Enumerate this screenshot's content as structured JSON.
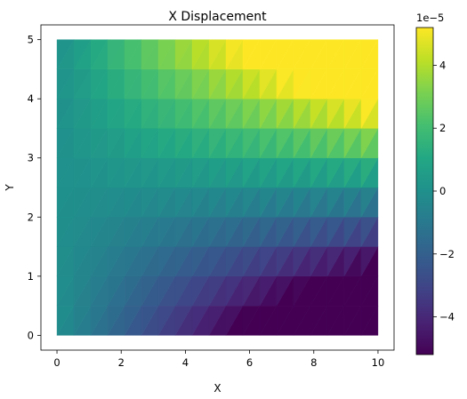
{
  "chart_data": {
    "type": "heatmap",
    "title": "X Displacement",
    "xlabel": "X",
    "ylabel": "Y",
    "xlim": [
      -0.5,
      10.5
    ],
    "ylim": [
      -0.25,
      5.25
    ],
    "field_extent": {
      "x": [
        0,
        10
      ],
      "y": [
        0,
        5
      ]
    },
    "mesh": {
      "nx": 19,
      "ny": 10,
      "cell_split": "triangles"
    },
    "field_model": "u_x(x,y) = 1e-5 * x * (y - 2.5) / 2.5",
    "xticks": [
      0,
      2,
      4,
      6,
      8,
      10
    ],
    "yticks": [
      0,
      1,
      2,
      3,
      4,
      5
    ],
    "colormap": "viridis",
    "colorbar": {
      "min": -5.2e-05,
      "max": 5.2e-05,
      "ticks": [
        -4,
        -2,
        0,
        2,
        4
      ],
      "tick_labels": [
        "−4",
        "−2",
        "0",
        "2",
        "4"
      ],
      "offset_label": "1e−5"
    },
    "axis_tick_labels": {
      "x": [
        "0",
        "2",
        "4",
        "6",
        "8",
        "10"
      ],
      "y": [
        "0",
        "1",
        "2",
        "3",
        "4",
        "5"
      ]
    }
  }
}
